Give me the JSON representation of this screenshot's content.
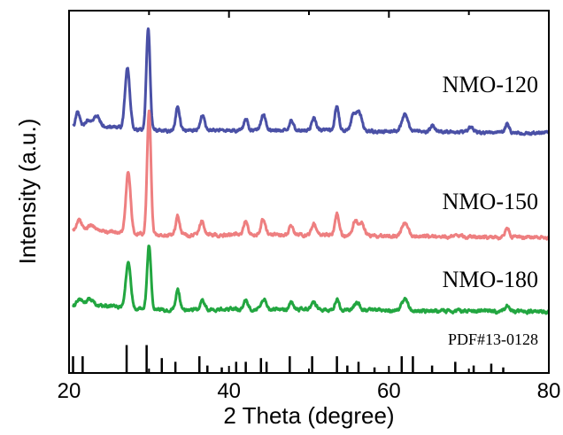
{
  "chart_data": {
    "type": "line",
    "xlabel": "2 Theta (degree)",
    "ylabel": "Intensity (a.u.)",
    "xlim": [
      20,
      80
    ],
    "x_ticks": [
      "20",
      "40",
      "60",
      "80"
    ],
    "y_ticks_labeled": false,
    "grid": false,
    "legend": "none; series labelled inline on the right",
    "series": [
      {
        "name": "NMO-120",
        "color": "#4a50a6",
        "baseline": 150,
        "peaks": [
          {
            "x": 21.1,
            "h": 18,
            "w": 0.35
          },
          {
            "x": 22.5,
            "h": 8,
            "w": 0.6
          },
          {
            "x": 23.5,
            "h": 12,
            "w": 0.5
          },
          {
            "x": 27.3,
            "h": 68,
            "w": 0.42
          },
          {
            "x": 29.9,
            "h": 115,
            "w": 0.33
          },
          {
            "x": 33.6,
            "h": 28,
            "w": 0.35
          },
          {
            "x": 36.7,
            "h": 18,
            "w": 0.4
          },
          {
            "x": 42.1,
            "h": 14,
            "w": 0.35
          },
          {
            "x": 44.3,
            "h": 18,
            "w": 0.4
          },
          {
            "x": 47.8,
            "h": 12,
            "w": 0.35
          },
          {
            "x": 50.6,
            "h": 14,
            "w": 0.4
          },
          {
            "x": 53.5,
            "h": 28,
            "w": 0.35
          },
          {
            "x": 55.6,
            "h": 18,
            "w": 0.45
          },
          {
            "x": 56.3,
            "h": 20,
            "w": 0.45
          },
          {
            "x": 62,
            "h": 20,
            "w": 0.55
          },
          {
            "x": 65.5,
            "h": 8,
            "w": 0.4
          },
          {
            "x": 70.2,
            "h": 6,
            "w": 0.4
          },
          {
            "x": 74.8,
            "h": 10,
            "w": 0.35
          }
        ]
      },
      {
        "name": "NMO-150",
        "color": "#ee7f80",
        "baseline": 268,
        "peaks": [
          {
            "x": 21.3,
            "h": 12,
            "w": 0.5
          },
          {
            "x": 22.8,
            "h": 8,
            "w": 0.6
          },
          {
            "x": 27.4,
            "h": 68,
            "w": 0.42
          },
          {
            "x": 30,
            "h": 140,
            "w": 0.33
          },
          {
            "x": 33.6,
            "h": 22,
            "w": 0.35
          },
          {
            "x": 36.6,
            "h": 16,
            "w": 0.4
          },
          {
            "x": 42.1,
            "h": 16,
            "w": 0.35
          },
          {
            "x": 44.3,
            "h": 18,
            "w": 0.4
          },
          {
            "x": 47.8,
            "h": 10,
            "w": 0.35
          },
          {
            "x": 50.6,
            "h": 12,
            "w": 0.4
          },
          {
            "x": 53.5,
            "h": 24,
            "w": 0.35
          },
          {
            "x": 55.8,
            "h": 16,
            "w": 0.45
          },
          {
            "x": 56.6,
            "h": 14,
            "w": 0.45
          },
          {
            "x": 62,
            "h": 14,
            "w": 0.55
          },
          {
            "x": 74.8,
            "h": 10,
            "w": 0.35
          }
        ]
      },
      {
        "name": "NMO-180",
        "color": "#22a640",
        "baseline": 352,
        "peaks": [
          {
            "x": 21.3,
            "h": 8,
            "w": 0.5
          },
          {
            "x": 22.6,
            "h": 8,
            "w": 0.6
          },
          {
            "x": 27.4,
            "h": 52,
            "w": 0.42
          },
          {
            "x": 30,
            "h": 72,
            "w": 0.33
          },
          {
            "x": 33.6,
            "h": 22,
            "w": 0.35
          },
          {
            "x": 36.7,
            "h": 10,
            "w": 0.4
          },
          {
            "x": 42.1,
            "h": 10,
            "w": 0.35
          },
          {
            "x": 44.4,
            "h": 12,
            "w": 0.4
          },
          {
            "x": 47.8,
            "h": 8,
            "w": 0.35
          },
          {
            "x": 50.6,
            "h": 8,
            "w": 0.4
          },
          {
            "x": 53.5,
            "h": 12,
            "w": 0.35
          },
          {
            "x": 56,
            "h": 8,
            "w": 0.45
          },
          {
            "x": 62,
            "h": 12,
            "w": 0.55
          },
          {
            "x": 74.8,
            "h": 6,
            "w": 0.35
          }
        ]
      }
    ],
    "reference": {
      "label": "PDF#13-0128",
      "color": "#000000",
      "lines": [
        {
          "x": 20.5,
          "h": 0.45
        },
        {
          "x": 21.7,
          "h": 0.45
        },
        {
          "x": 27.2,
          "h": 0.75
        },
        {
          "x": 29.7,
          "h": 0.75
        },
        {
          "x": 31.6,
          "h": 0.4
        },
        {
          "x": 33.3,
          "h": 0.3
        },
        {
          "x": 36.3,
          "h": 0.45
        },
        {
          "x": 37.3,
          "h": 0.2
        },
        {
          "x": 39.1,
          "h": 0.15
        },
        {
          "x": 40.9,
          "h": 0.3
        },
        {
          "x": 42.1,
          "h": 0.3
        },
        {
          "x": 44,
          "h": 0.4
        },
        {
          "x": 44.7,
          "h": 0.3
        },
        {
          "x": 47.6,
          "h": 0.45
        },
        {
          "x": 50.4,
          "h": 0.45
        },
        {
          "x": 53.5,
          "h": 0.45
        },
        {
          "x": 54.8,
          "h": 0.2
        },
        {
          "x": 56.2,
          "h": 0.3
        },
        {
          "x": 58.2,
          "h": 0.15
        },
        {
          "x": 61.6,
          "h": 0.45
        },
        {
          "x": 63,
          "h": 0.45
        },
        {
          "x": 65.4,
          "h": 0.2
        },
        {
          "x": 68.3,
          "h": 0.3
        },
        {
          "x": 70.6,
          "h": 0.2
        },
        {
          "x": 72.8,
          "h": 0.25
        },
        {
          "x": 74.3,
          "h": 0.15
        }
      ]
    }
  }
}
